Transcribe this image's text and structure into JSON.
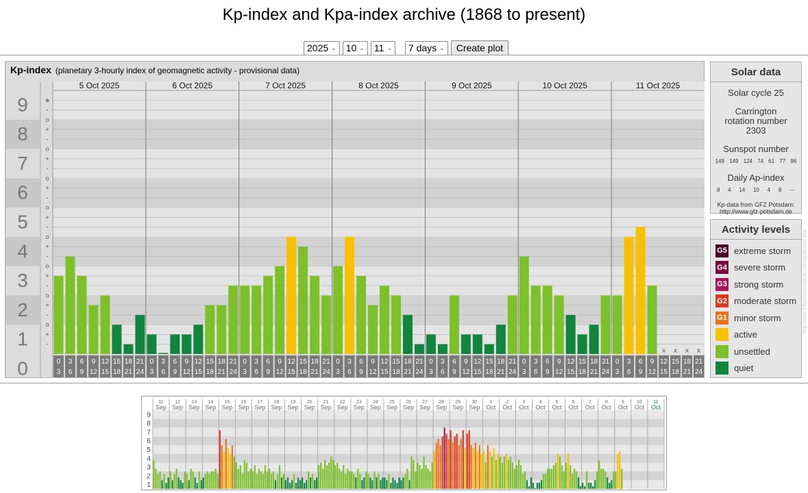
{
  "page_title": "Kp-index and Kpa-index archive (1868 to present)",
  "controls": {
    "year": "2025",
    "month": "10",
    "day": "11",
    "span": "7 days",
    "button": "Create plot"
  },
  "kp_panel": {
    "title": "Kp-index",
    "subtitle": "(planetary 3-hourly index of geomagnetic activity - provisional data)"
  },
  "solar": {
    "title": "Solar data",
    "cycle": "Solar cycle 25",
    "carrington": "Carrington rotation number 2303",
    "sunspot_label": "Sunspot number",
    "sunspot_values": [
      "149",
      "149",
      "124",
      "74",
      "61",
      "77",
      "96"
    ],
    "ap_label": "Daily Ap-index",
    "ap_values": [
      "8",
      "4",
      "14",
      "10",
      "4",
      "8",
      "---"
    ],
    "credit_1": "Kp-data from GFZ Potsdam:",
    "credit_2": "http://www.gfz-potsdam.de"
  },
  "activity": {
    "title": "Activity levels",
    "items": [
      {
        "badge": "G5",
        "label": "extreme storm",
        "color": "#4a0026"
      },
      {
        "badge": "G4",
        "label": "severe storm",
        "color": "#7a0a3c"
      },
      {
        "badge": "G3",
        "label": "strong storm",
        "color": "#a8175b"
      },
      {
        "badge": "G2",
        "label": "moderate storm",
        "color": "#d83a1f"
      },
      {
        "badge": "G1",
        "label": "minor storm",
        "color": "#e8731e"
      },
      {
        "badge": "",
        "label": "active",
        "color": "#f8c100"
      },
      {
        "badge": "",
        "label": "unsettled",
        "color": "#7cc129"
      },
      {
        "badge": "",
        "label": "quiet",
        "color": "#11843e"
      }
    ]
  },
  "side_watermark": "http://www.theplasmaoutlook.com/kp-archive.php",
  "chart_data": [
    {
      "type": "bar",
      "ylim": [
        0,
        9
      ],
      "y_ticks": [
        "0",
        "1",
        "2",
        "3",
        "4",
        "5",
        "6",
        "7",
        "8",
        "9"
      ],
      "sub_ticks": [
        "o",
        "-",
        "+"
      ],
      "days": [
        "5 Oct 2025",
        "6 Oct 2025",
        "7 Oct 2025",
        "8 Oct 2025",
        "9 Oct 2025",
        "10 Oct 2025",
        "11 Oct 2025"
      ],
      "interval_start": [
        "0",
        "3",
        "6",
        "9",
        "12",
        "15",
        "18",
        "21"
      ],
      "interval_end": [
        "3",
        "6",
        "9",
        "12",
        "15",
        "18",
        "21",
        "24"
      ],
      "missing_marker": "x",
      "values": [
        2.667,
        3.333,
        2.667,
        1.667,
        2.0,
        1.0,
        0.333,
        1.333,
        0.667,
        0.0,
        0.667,
        0.667,
        1.0,
        1.667,
        1.667,
        2.333,
        2.333,
        2.333,
        2.667,
        3.0,
        4.0,
        3.667,
        2.667,
        2.0,
        3.0,
        4.0,
        2.667,
        1.667,
        2.333,
        2.0,
        1.333,
        0.333,
        0.667,
        0.333,
        2.0,
        0.667,
        0.667,
        0.333,
        1.0,
        2.0,
        3.333,
        2.333,
        2.333,
        2.0,
        1.333,
        0.667,
        1.0,
        2.0,
        2.0,
        4.0,
        4.333,
        2.333,
        null,
        null,
        null,
        null
      ],
      "colors": {
        "quiet": "#11843e",
        "unsettled": "#7cc129",
        "active": "#f8c100",
        "G1": "#e8731e",
        "G2": "#d83a1f",
        "G3": "#a8175b",
        "G4": "#7a0a3c",
        "G5": "#4a0026"
      }
    },
    {
      "type": "bar",
      "ylim": [
        0,
        9
      ],
      "y_ticks": [
        "1",
        "2",
        "3",
        "4",
        "5",
        "6",
        "7",
        "8",
        "9"
      ],
      "days": [
        {
          "d": "11",
          "m": "Sep"
        },
        {
          "d": "12",
          "m": "Sep"
        },
        {
          "d": "13",
          "m": "Sep"
        },
        {
          "d": "14",
          "m": "Sep"
        },
        {
          "d": "15",
          "m": "Sep"
        },
        {
          "d": "16",
          "m": "Sep"
        },
        {
          "d": "17",
          "m": "Sep"
        },
        {
          "d": "18",
          "m": "Sep"
        },
        {
          "d": "19",
          "m": "Sep"
        },
        {
          "d": "20",
          "m": "Sep"
        },
        {
          "d": "21",
          "m": "Sep"
        },
        {
          "d": "22",
          "m": "Sep"
        },
        {
          "d": "23",
          "m": "Sep"
        },
        {
          "d": "24",
          "m": "Sep"
        },
        {
          "d": "25",
          "m": "Sep"
        },
        {
          "d": "26",
          "m": "Sep"
        },
        {
          "d": "27",
          "m": "Sep"
        },
        {
          "d": "28",
          "m": "Sep"
        },
        {
          "d": "29",
          "m": "Sep"
        },
        {
          "d": "30",
          "m": "Sep"
        },
        {
          "d": "1",
          "m": "Oct"
        },
        {
          "d": "2",
          "m": "Oct"
        },
        {
          "d": "3",
          "m": "Oct"
        },
        {
          "d": "4",
          "m": "Oct"
        },
        {
          "d": "5",
          "m": "Oct"
        },
        {
          "d": "6",
          "m": "Oct"
        },
        {
          "d": "7",
          "m": "Oct"
        },
        {
          "d": "8",
          "m": "Oct"
        },
        {
          "d": "9",
          "m": "Oct"
        },
        {
          "d": "10",
          "m": "Oct"
        },
        {
          "d": "11",
          "m": "Oct"
        }
      ],
      "values": [
        3.3,
        2.3,
        1.7,
        2.0,
        1.0,
        1.7,
        0.7,
        1.3,
        2.0,
        1.0,
        1.7,
        2.3,
        1.3,
        1.0,
        0.7,
        2.0,
        1.7,
        1.0,
        2.3,
        2.0,
        1.3,
        0.7,
        2.0,
        1.0,
        1.3,
        1.7,
        2.0,
        1.7,
        2.0,
        2.0,
        2.3,
        1.7,
        6.7,
        5.0,
        4.3,
        5.7,
        4.7,
        4.0,
        5.0,
        3.7,
        3.0,
        2.3,
        2.7,
        1.7,
        3.3,
        3.0,
        2.0,
        2.3,
        2.0,
        2.7,
        1.7,
        2.3,
        2.0,
        1.7,
        2.7,
        2.0,
        2.3,
        1.7,
        2.0,
        1.0,
        1.7,
        2.7,
        1.3,
        1.7,
        1.0,
        1.3,
        0.7,
        1.0,
        1.7,
        0.7,
        1.3,
        1.0,
        1.3,
        0.7,
        1.0,
        2.0,
        1.3,
        1.7,
        1.0,
        1.3,
        2.7,
        3.0,
        2.3,
        3.3,
        2.7,
        3.0,
        3.7,
        3.3,
        2.7,
        3.0,
        2.3,
        2.0,
        2.7,
        1.7,
        2.3,
        2.0,
        2.0,
        1.7,
        1.3,
        2.3,
        1.7,
        1.0,
        1.3,
        2.0,
        1.7,
        1.3,
        1.0,
        2.0,
        1.3,
        1.7,
        1.0,
        1.3,
        1.3,
        1.0,
        1.7,
        0.7,
        1.3,
        1.0,
        0.7,
        1.3,
        1.0,
        1.3,
        1.7,
        2.3,
        1.0,
        3.7,
        3.3,
        2.0,
        3.0,
        2.7,
        2.3,
        3.7,
        2.7,
        2.3,
        2.0,
        3.0,
        4.3,
        5.3,
        5.7,
        5.0,
        6.0,
        7.0,
        6.3,
        5.7,
        6.7,
        5.3,
        6.0,
        6.3,
        5.0,
        5.7,
        6.7,
        4.7,
        6.3,
        6.7,
        5.0,
        4.7,
        5.3,
        4.3,
        5.0,
        4.0,
        4.3,
        3.0,
        5.0,
        4.3,
        3.7,
        4.7,
        3.3,
        4.0,
        3.7,
        3.0,
        3.7,
        4.0,
        3.3,
        3.7,
        3.0,
        2.3,
        2.7,
        3.3,
        2.7,
        1.7,
        2.0,
        1.0,
        0.3,
        1.3,
        0.7,
        0.0,
        0.7,
        0.7,
        1.0,
        1.7,
        1.7,
        2.3,
        2.3,
        2.3,
        2.7,
        3.0,
        4.0,
        3.7,
        2.7,
        2.0,
        3.0,
        4.0,
        2.7,
        1.7,
        2.3,
        2.0,
        1.3,
        0.3,
        0.7,
        0.3,
        2.0,
        0.7,
        0.7,
        0.3,
        1.0,
        2.0,
        3.3,
        2.3,
        2.3,
        2.0,
        1.3,
        0.7,
        1.0,
        2.0,
        2.0,
        4.0,
        4.3,
        2.3,
        null,
        null,
        null,
        null
      ]
    }
  ]
}
